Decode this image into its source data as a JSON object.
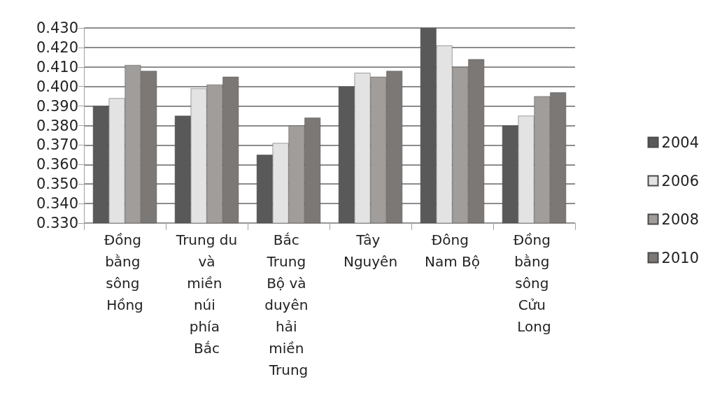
{
  "chart_data": {
    "type": "bar",
    "categories": [
      "Đồng bằng sông Hồng",
      "Trung du và miền núi phía Bắc",
      "Bắc Trung Bộ và duyên hải miền Trung",
      "Tây Nguyên",
      "Đông Nam Bộ",
      "Đồng bằng sông Cửu Long"
    ],
    "series": [
      {
        "name": "2004",
        "color": "#595959",
        "values": [
          0.39,
          0.385,
          0.365,
          0.4,
          0.43,
          0.38
        ]
      },
      {
        "name": "2006",
        "color": "#e3e3e3",
        "values": [
          0.394,
          0.399,
          0.371,
          0.407,
          0.421,
          0.385
        ]
      },
      {
        "name": "2008",
        "color": "#a09d9a",
        "values": [
          0.411,
          0.401,
          0.38,
          0.405,
          0.41,
          0.395
        ]
      },
      {
        "name": "2010",
        "color": "#7b7876",
        "values": [
          0.408,
          0.405,
          0.384,
          0.408,
          0.414,
          0.397
        ]
      }
    ],
    "ylim": [
      0.33,
      0.43
    ],
    "yticks": [
      {
        "value": 0.33,
        "label": "0.330"
      },
      {
        "value": 0.34,
        "label": "0.340"
      },
      {
        "value": 0.35,
        "label": "0.350"
      },
      {
        "value": 0.36,
        "label": "0.360"
      },
      {
        "value": 0.37,
        "label": "0.370"
      },
      {
        "value": 0.38,
        "label": "0.380"
      },
      {
        "value": 0.39,
        "label": "0.390"
      },
      {
        "value": 0.4,
        "label": "0.400"
      },
      {
        "value": 0.41,
        "label": "0.410"
      },
      {
        "value": 0.42,
        "label": "0.420"
      },
      {
        "value": 0.43,
        "label": "0.430"
      }
    ],
    "grid": "y",
    "legend": "right"
  }
}
